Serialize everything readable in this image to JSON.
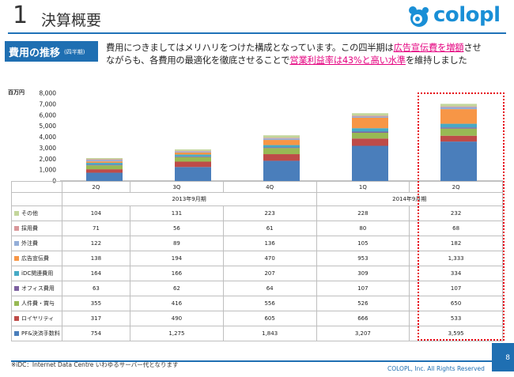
{
  "header": {
    "number": "1",
    "title": "決算概要",
    "logo_text": "colopl"
  },
  "section": {
    "title": "費用の推移",
    "subtitle": "(四半期)"
  },
  "lead": {
    "line1_a": "費用につきましてはメリハリをつけた構成となっています。この四半期は",
    "line1_em": "広告宣伝費を増額",
    "line1_b": "させ",
    "line2_a": "ながらも、各費用の最適化を徹底させることで",
    "line2_em": "営業利益率は43%と高い水準",
    "line2_b": "を維持しました"
  },
  "chart_data": {
    "type": "bar",
    "stacked": true,
    "unit_label": "百万円",
    "ylim": [
      0,
      8000
    ],
    "y_ticks": [
      "0",
      "1,000",
      "2,000",
      "3,000",
      "4,000",
      "5,000",
      "6,000",
      "7,000",
      "8,000"
    ],
    "categories": [
      "2Q",
      "3Q",
      "4Q",
      "1Q",
      "2Q"
    ],
    "periods": [
      {
        "label": "2013年9月期",
        "span": 3
      },
      {
        "label": "2014年9月期",
        "span": 2
      }
    ],
    "series": [
      {
        "name": "PF&決済手数料",
        "color": "#4a7ebb",
        "values": [
          754,
          1275,
          1843,
          3207,
          3595
        ],
        "display": [
          "754",
          "1,275",
          "1,843",
          "3,207",
          "3,595"
        ]
      },
      {
        "name": "ロイヤリティ",
        "color": "#be4b48",
        "values": [
          317,
          490,
          605,
          666,
          533
        ],
        "display": [
          "317",
          "490",
          "605",
          "666",
          "533"
        ]
      },
      {
        "name": "人件費・賞与",
        "color": "#98b954",
        "values": [
          355,
          416,
          556,
          526,
          650
        ],
        "display": [
          "355",
          "416",
          "556",
          "526",
          "650"
        ]
      },
      {
        "name": "オフィス費用",
        "color": "#7d60a0",
        "values": [
          63,
          62,
          64,
          107,
          107
        ],
        "display": [
          "63",
          "62",
          "64",
          "107",
          "107"
        ]
      },
      {
        "name": "iDC関連費用",
        "color": "#46aac5",
        "values": [
          164,
          166,
          207,
          309,
          334
        ],
        "display": [
          "164",
          "166",
          "207",
          "309",
          "334"
        ]
      },
      {
        "name": "広告宣伝費",
        "color": "#f79646",
        "values": [
          138,
          194,
          470,
          953,
          1333
        ],
        "display": [
          "138",
          "194",
          "470",
          "953",
          "1,333"
        ]
      },
      {
        "name": "外注費",
        "color": "#94aed8",
        "values": [
          122,
          89,
          136,
          105,
          182
        ],
        "display": [
          "122",
          "89",
          "136",
          "105",
          "182"
        ]
      },
      {
        "name": "採用費",
        "color": "#d9979a",
        "values": [
          71,
          56,
          61,
          80,
          68
        ],
        "display": [
          "71",
          "56",
          "61",
          "80",
          "68"
        ]
      },
      {
        "name": "その他",
        "color": "#c3d69b",
        "values": [
          104,
          131,
          223,
          228,
          232
        ],
        "display": [
          "104",
          "131",
          "223",
          "228",
          "232"
        ]
      }
    ]
  },
  "footer": {
    "note": "※iDC：Internet Data Centre いわゆるサーバー代となります",
    "copyright": "COLOPL, Inc. All Rights Reserved",
    "page": "8"
  }
}
